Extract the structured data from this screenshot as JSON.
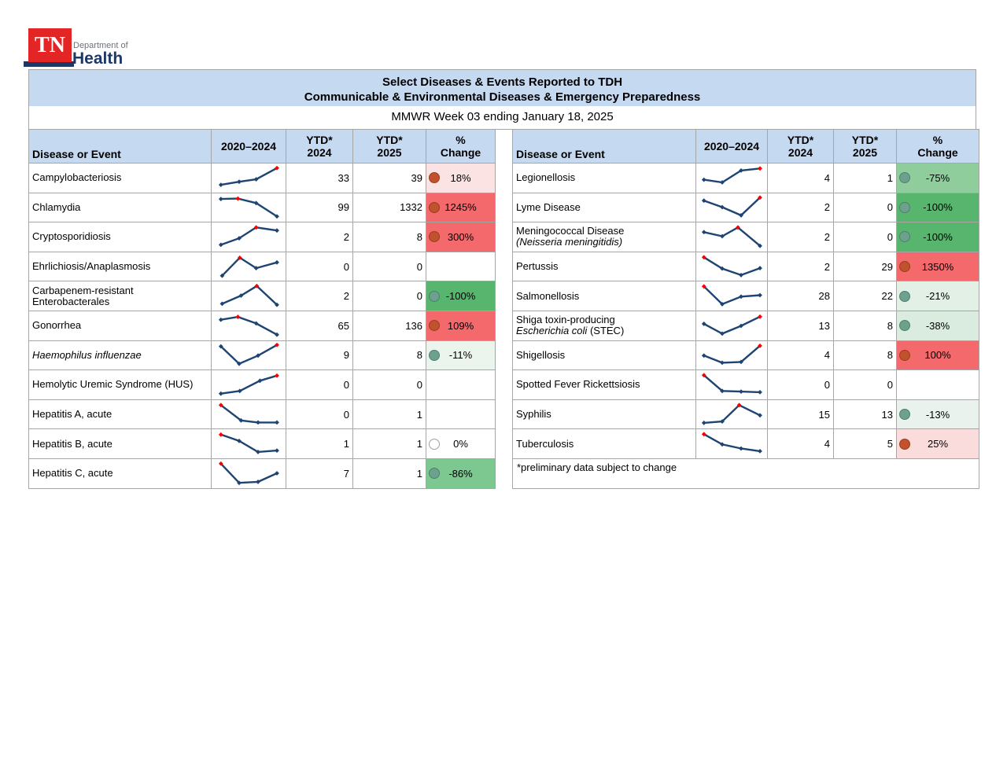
{
  "logo": {
    "tn": "TN",
    "dept": "Department of",
    "health": "Health"
  },
  "banner": {
    "line1": "Select Diseases & Events Reported to TDH",
    "line2": "Communicable & Environmental Diseases & Emergency Preparedness"
  },
  "subtitle": "MMWR Week 03 ending January 18, 2025",
  "columns": {
    "disease": "Disease or Event",
    "trend": "2020–2024",
    "ytd1": [
      "YTD*",
      "2024"
    ],
    "ytd2": [
      "YTD*",
      "2025"
    ],
    "change": [
      "%",
      "Change"
    ]
  },
  "colors": {
    "banner_bg": "#c5d9f1",
    "header_bg": "#c5d9f1",
    "border": "#a6a6a6",
    "spark_line": "#1e4472",
    "spark_red": "#ff0000",
    "dot_up": "#c0522d",
    "dot_up_border": "#9c3d1d",
    "dot_down": "#6ea18d",
    "dot_down_border": "#4e8070",
    "dot_zero": "#ffffff",
    "dot_zero_border": "#a0a0a0",
    "logo_red": "#e32526",
    "logo_navy": "#1d3767",
    "logo_gray": "#6d7278"
  },
  "left_table": {
    "rows": [
      {
        "lines": [
          [
            {
              "t": "Campylobacteriosis",
              "i": false
            }
          ]
        ],
        "spark": {
          "pts": [
            [
              0.06,
              0.15
            ],
            [
              0.35,
              0.3
            ],
            [
              0.62,
              0.42
            ],
            [
              0.95,
              0.97
            ]
          ],
          "red": 3
        },
        "ytd2024": "33",
        "ytd2025": "39",
        "change": {
          "label": "18%",
          "bg": "#fbe3e4",
          "dot": "up"
        }
      },
      {
        "lines": [
          [
            {
              "t": "Chlamydia",
              "i": false
            }
          ]
        ],
        "spark": {
          "pts": [
            [
              0.06,
              0.88
            ],
            [
              0.33,
              0.9
            ],
            [
              0.62,
              0.68
            ],
            [
              0.95,
              0.03
            ]
          ],
          "red": 1
        },
        "ytd2024": "99",
        "ytd2025": "1332",
        "change": {
          "label": "1245%",
          "bg": "#f4696c",
          "dot": "up"
        }
      },
      {
        "lines": [
          [
            {
              "t": "Cryptosporidiosis",
              "i": false
            }
          ]
        ],
        "spark": {
          "pts": [
            [
              0.06,
              0.1
            ],
            [
              0.35,
              0.42
            ],
            [
              0.62,
              0.95
            ],
            [
              0.95,
              0.8
            ]
          ],
          "red": 2
        },
        "ytd2024": "2",
        "ytd2025": "8",
        "change": {
          "label": "300%",
          "bg": "#f4696c",
          "dot": "up"
        }
      },
      {
        "lines": [
          [
            {
              "t": "Ehrlichiosis/Anaplasmosis",
              "i": false
            }
          ]
        ],
        "spark": {
          "pts": [
            [
              0.08,
              0.05
            ],
            [
              0.36,
              0.93
            ],
            [
              0.62,
              0.42
            ],
            [
              0.95,
              0.7
            ]
          ],
          "red": 1
        },
        "ytd2024": "0",
        "ytd2025": "0",
        "change": null
      },
      {
        "lines": [
          [
            {
              "t": "Carbapenem-resistant",
              "i": false
            }
          ],
          [
            {
              "t": "Enterobacterales",
              "i": false
            }
          ]
        ],
        "spark": {
          "pts": [
            [
              0.08,
              0.1
            ],
            [
              0.38,
              0.5
            ],
            [
              0.63,
              0.97
            ],
            [
              0.95,
              0.05
            ]
          ],
          "red": 2
        },
        "ytd2024": "2",
        "ytd2025": "0",
        "change": {
          "label": "-100%",
          "bg": "#57b56e",
          "dot": "down"
        }
      },
      {
        "lines": [
          [
            {
              "t": "Gonorrhea",
              "i": false
            }
          ]
        ],
        "spark": {
          "pts": [
            [
              0.06,
              0.78
            ],
            [
              0.33,
              0.92
            ],
            [
              0.62,
              0.6
            ],
            [
              0.95,
              0.05
            ]
          ],
          "red": 1
        },
        "ytd2024": "65",
        "ytd2025": "136",
        "change": {
          "label": "109%",
          "bg": "#f4696c",
          "dot": "up"
        }
      },
      {
        "lines": [
          [
            {
              "t": "Haemophilus influenzae",
              "i": true
            }
          ]
        ],
        "spark": {
          "pts": [
            [
              0.06,
              0.9
            ],
            [
              0.35,
              0.05
            ],
            [
              0.65,
              0.45
            ],
            [
              0.95,
              0.97
            ]
          ],
          "red": 3
        },
        "ytd2024": "9",
        "ytd2025": "8",
        "change": {
          "label": "-11%",
          "bg": "#ecf4ee",
          "dot": "down"
        }
      },
      {
        "lines": [
          [
            {
              "t": "Hemolytic Uremic Syndrome (HUS)",
              "i": false
            }
          ]
        ],
        "spark": {
          "pts": [
            [
              0.06,
              0.05
            ],
            [
              0.36,
              0.18
            ],
            [
              0.68,
              0.68
            ],
            [
              0.95,
              0.93
            ]
          ],
          "red": 3
        },
        "ytd2024": "0",
        "ytd2025": "0",
        "change": null
      },
      {
        "lines": [
          [
            {
              "t": "Hepatitis A, acute",
              "i": false
            }
          ]
        ],
        "spark": {
          "pts": [
            [
              0.06,
              0.95
            ],
            [
              0.38,
              0.2
            ],
            [
              0.65,
              0.1
            ],
            [
              0.95,
              0.1
            ]
          ],
          "red": 0
        },
        "ytd2024": "0",
        "ytd2025": "1",
        "change": null
      },
      {
        "lines": [
          [
            {
              "t": "Hepatitis B, acute",
              "i": false
            }
          ]
        ],
        "spark": {
          "pts": [
            [
              0.06,
              0.93
            ],
            [
              0.35,
              0.62
            ],
            [
              0.65,
              0.08
            ],
            [
              0.95,
              0.15
            ]
          ],
          "red": 0
        },
        "ytd2024": "1",
        "ytd2025": "1",
        "change": {
          "label": "0%",
          "bg": "#ffffff",
          "dot": "zero"
        }
      },
      {
        "lines": [
          [
            {
              "t": "Hepatitis C, acute",
              "i": false
            }
          ]
        ],
        "spark": {
          "pts": [
            [
              0.06,
              0.97
            ],
            [
              0.35,
              0.03
            ],
            [
              0.65,
              0.08
            ],
            [
              0.95,
              0.5
            ]
          ],
          "red": 0
        },
        "ytd2024": "7",
        "ytd2025": "1",
        "change": {
          "label": "-86%",
          "bg": "#7dc791",
          "dot": "down"
        }
      }
    ]
  },
  "right_table": {
    "footnote": "*preliminary data subject to change",
    "rows": [
      {
        "lines": [
          [
            {
              "t": "Legionellosis",
              "i": false
            }
          ]
        ],
        "spark": {
          "pts": [
            [
              0.06,
              0.4
            ],
            [
              0.35,
              0.27
            ],
            [
              0.65,
              0.85
            ],
            [
              0.95,
              0.95
            ]
          ],
          "red": 3
        },
        "ytd2024": "4",
        "ytd2025": "1",
        "change": {
          "label": "-75%",
          "bg": "#8fce9c",
          "dot": "down"
        }
      },
      {
        "lines": [
          [
            {
              "t": "Lyme Disease",
              "i": false
            }
          ]
        ],
        "spark": {
          "pts": [
            [
              0.06,
              0.8
            ],
            [
              0.35,
              0.48
            ],
            [
              0.65,
              0.08
            ],
            [
              0.95,
              0.95
            ]
          ],
          "red": 3
        },
        "ytd2024": "2",
        "ytd2025": "0",
        "change": {
          "label": "-100%",
          "bg": "#57b56e",
          "dot": "down"
        }
      },
      {
        "lines": [
          [
            {
              "t": "Meningococcal Disease",
              "i": false
            }
          ],
          [
            {
              "t": "(Neisseria meningitidis)",
              "i": true
            }
          ]
        ],
        "spark": {
          "pts": [
            [
              0.06,
              0.72
            ],
            [
              0.35,
              0.52
            ],
            [
              0.6,
              0.95
            ],
            [
              0.95,
              0.05
            ]
          ],
          "red": 2
        },
        "ytd2024": "2",
        "ytd2025": "0",
        "change": {
          "label": "-100%",
          "bg": "#57b56e",
          "dot": "down"
        }
      },
      {
        "lines": [
          [
            {
              "t": "Pertussis",
              "i": false
            }
          ]
        ],
        "spark": {
          "pts": [
            [
              0.06,
              0.95
            ],
            [
              0.35,
              0.4
            ],
            [
              0.65,
              0.08
            ],
            [
              0.95,
              0.42
            ]
          ],
          "red": 0
        },
        "ytd2024": "2",
        "ytd2025": "29",
        "change": {
          "label": "1350%",
          "bg": "#f4696c",
          "dot": "up"
        }
      },
      {
        "lines": [
          [
            {
              "t": "Salmonellosis",
              "i": false
            }
          ]
        ],
        "spark": {
          "pts": [
            [
              0.06,
              0.95
            ],
            [
              0.35,
              0.08
            ],
            [
              0.65,
              0.45
            ],
            [
              0.95,
              0.52
            ]
          ],
          "red": 0
        },
        "ytd2024": "28",
        "ytd2025": "22",
        "change": {
          "label": "-21%",
          "bg": "#e2f0e6",
          "dot": "down"
        }
      },
      {
        "lines": [
          [
            {
              "t": "Shiga toxin-producing",
              "i": false
            }
          ],
          [
            {
              "t": "Escherichia coli",
              "i": true
            },
            {
              "t": " (STEC)",
              "i": false
            }
          ]
        ],
        "spark": {
          "pts": [
            [
              0.06,
              0.58
            ],
            [
              0.35,
              0.1
            ],
            [
              0.65,
              0.48
            ],
            [
              0.95,
              0.93
            ]
          ],
          "red": 3
        },
        "ytd2024": "13",
        "ytd2025": "8",
        "change": {
          "label": "-38%",
          "bg": "#d9ecdf",
          "dot": "down"
        }
      },
      {
        "lines": [
          [
            {
              "t": "Shigellosis",
              "i": false
            }
          ]
        ],
        "spark": {
          "pts": [
            [
              0.06,
              0.45
            ],
            [
              0.35,
              0.1
            ],
            [
              0.65,
              0.14
            ],
            [
              0.95,
              0.93
            ]
          ],
          "red": 3
        },
        "ytd2024": "4",
        "ytd2025": "8",
        "change": {
          "label": "100%",
          "bg": "#f4696c",
          "dot": "up"
        }
      },
      {
        "lines": [
          [
            {
              "t": "Spotted Fever Rickettsiosis",
              "i": false
            }
          ]
        ],
        "spark": {
          "pts": [
            [
              0.06,
              0.95
            ],
            [
              0.35,
              0.18
            ],
            [
              0.65,
              0.15
            ],
            [
              0.95,
              0.12
            ]
          ],
          "red": 0
        },
        "ytd2024": "0",
        "ytd2025": "0",
        "change": null
      },
      {
        "lines": [
          [
            {
              "t": "Syphilis",
              "i": false
            }
          ]
        ],
        "spark": {
          "pts": [
            [
              0.06,
              0.08
            ],
            [
              0.35,
              0.15
            ],
            [
              0.62,
              0.95
            ],
            [
              0.95,
              0.45
            ]
          ],
          "red": 2
        },
        "ytd2024": "15",
        "ytd2025": "13",
        "change": {
          "label": "-13%",
          "bg": "#e9f2ec",
          "dot": "down"
        }
      },
      {
        "lines": [
          [
            {
              "t": "Tuberculosis",
              "i": false
            }
          ]
        ],
        "spark": {
          "pts": [
            [
              0.06,
              0.95
            ],
            [
              0.35,
              0.45
            ],
            [
              0.65,
              0.25
            ],
            [
              0.95,
              0.12
            ]
          ],
          "red": 0
        },
        "ytd2024": "4",
        "ytd2025": "5",
        "change": {
          "label": "25%",
          "bg": "#fbdcdc",
          "dot": "up"
        }
      }
    ]
  }
}
